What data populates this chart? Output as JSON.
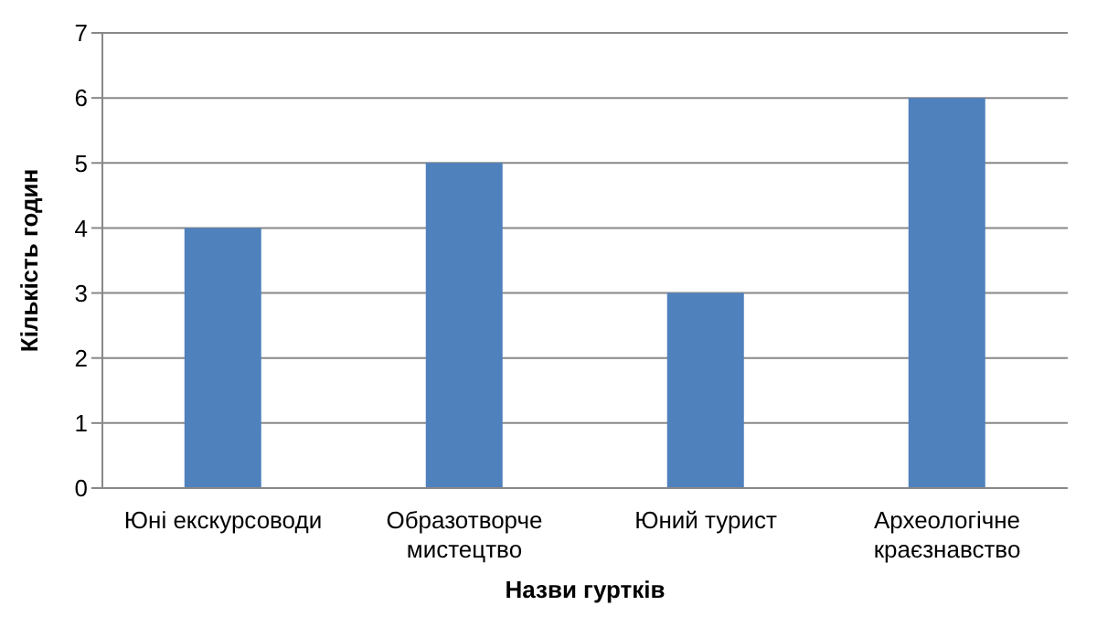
{
  "chart_data": {
    "type": "bar",
    "xlabel": "Назви гуртків",
    "ylabel": "Кількість годин",
    "categories": [
      "Юні екскурсоводи",
      "Образотворче мистецтво",
      "Юний турист",
      "Археологічне краєзнавство"
    ],
    "values": [
      4,
      5,
      3,
      6
    ],
    "color": "#4f81bd",
    "ylim": [
      0,
      7
    ],
    "yticks": [
      0,
      1,
      2,
      3,
      4,
      5,
      6,
      7
    ],
    "grid": "y"
  }
}
